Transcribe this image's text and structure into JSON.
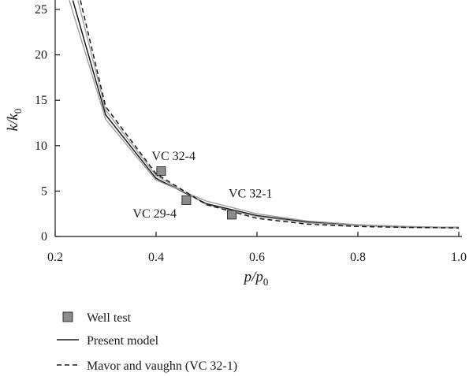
{
  "chart_data": {
    "type": "line",
    "xlabel": "p/p0",
    "ylabel": "k/k0",
    "xlim": [
      0.2,
      1.0
    ],
    "ylim": [
      0,
      25
    ],
    "xticks": [
      "0.2",
      "0.4",
      "0.6",
      "0.8",
      "1.0"
    ],
    "yticks": [
      "0",
      "5",
      "10",
      "15",
      "20",
      "25"
    ],
    "grid": false,
    "legend_position": "bottom",
    "series": [
      {
        "name": "Present model",
        "style": "solid",
        "color": "#1a1a1a",
        "x": [
          0.235,
          0.3,
          0.4,
          0.5,
          0.6,
          0.7,
          0.8,
          0.9,
          1.0
        ],
        "y": [
          26.0,
          13.4,
          6.4,
          3.6,
          2.3,
          1.6,
          1.25,
          1.05,
          1.0
        ]
      },
      {
        "name": "",
        "style": "solid",
        "color": "#9a9a9a",
        "x": [
          0.228,
          0.3,
          0.4,
          0.5,
          0.6,
          0.7,
          0.8,
          0.9,
          1.0
        ],
        "y": [
          26.0,
          12.9,
          6.2,
          3.9,
          2.5,
          1.7,
          1.3,
          1.1,
          1.0
        ]
      },
      {
        "name": "",
        "style": "solid",
        "color": "#9a9a9a",
        "x": [
          0.245,
          0.3,
          0.4,
          0.5,
          0.6,
          0.7,
          0.8,
          0.9,
          1.0
        ],
        "y": [
          26.0,
          13.9,
          6.7,
          3.5,
          2.2,
          1.5,
          1.2,
          1.0,
          0.95
        ]
      },
      {
        "name": "Mavor and vaughn (VC 32-1)",
        "style": "dashed",
        "color": "#1a1a1a",
        "x": [
          0.25,
          0.3,
          0.4,
          0.5,
          0.6,
          0.7,
          0.8,
          0.9,
          1.0
        ],
        "y": [
          26.0,
          14.3,
          6.9,
          3.5,
          2.0,
          1.35,
          1.1,
          1.0,
          0.95
        ]
      }
    ],
    "points": {
      "name": "Well test",
      "color": "#8c8c8c",
      "data": [
        {
          "label": "VC 32-4",
          "x": 0.41,
          "y": 7.2
        },
        {
          "label": "VC 29-4",
          "x": 0.46,
          "y": 4.0
        },
        {
          "label": "VC 32-1",
          "x": 0.55,
          "y": 2.4
        }
      ]
    },
    "legend": [
      {
        "label": "Well test",
        "marker": "square"
      },
      {
        "label": "Present model",
        "marker": "solid-line"
      },
      {
        "label": "Mavor and vaughn (VC 32-1)",
        "marker": "dashed-line"
      }
    ]
  }
}
